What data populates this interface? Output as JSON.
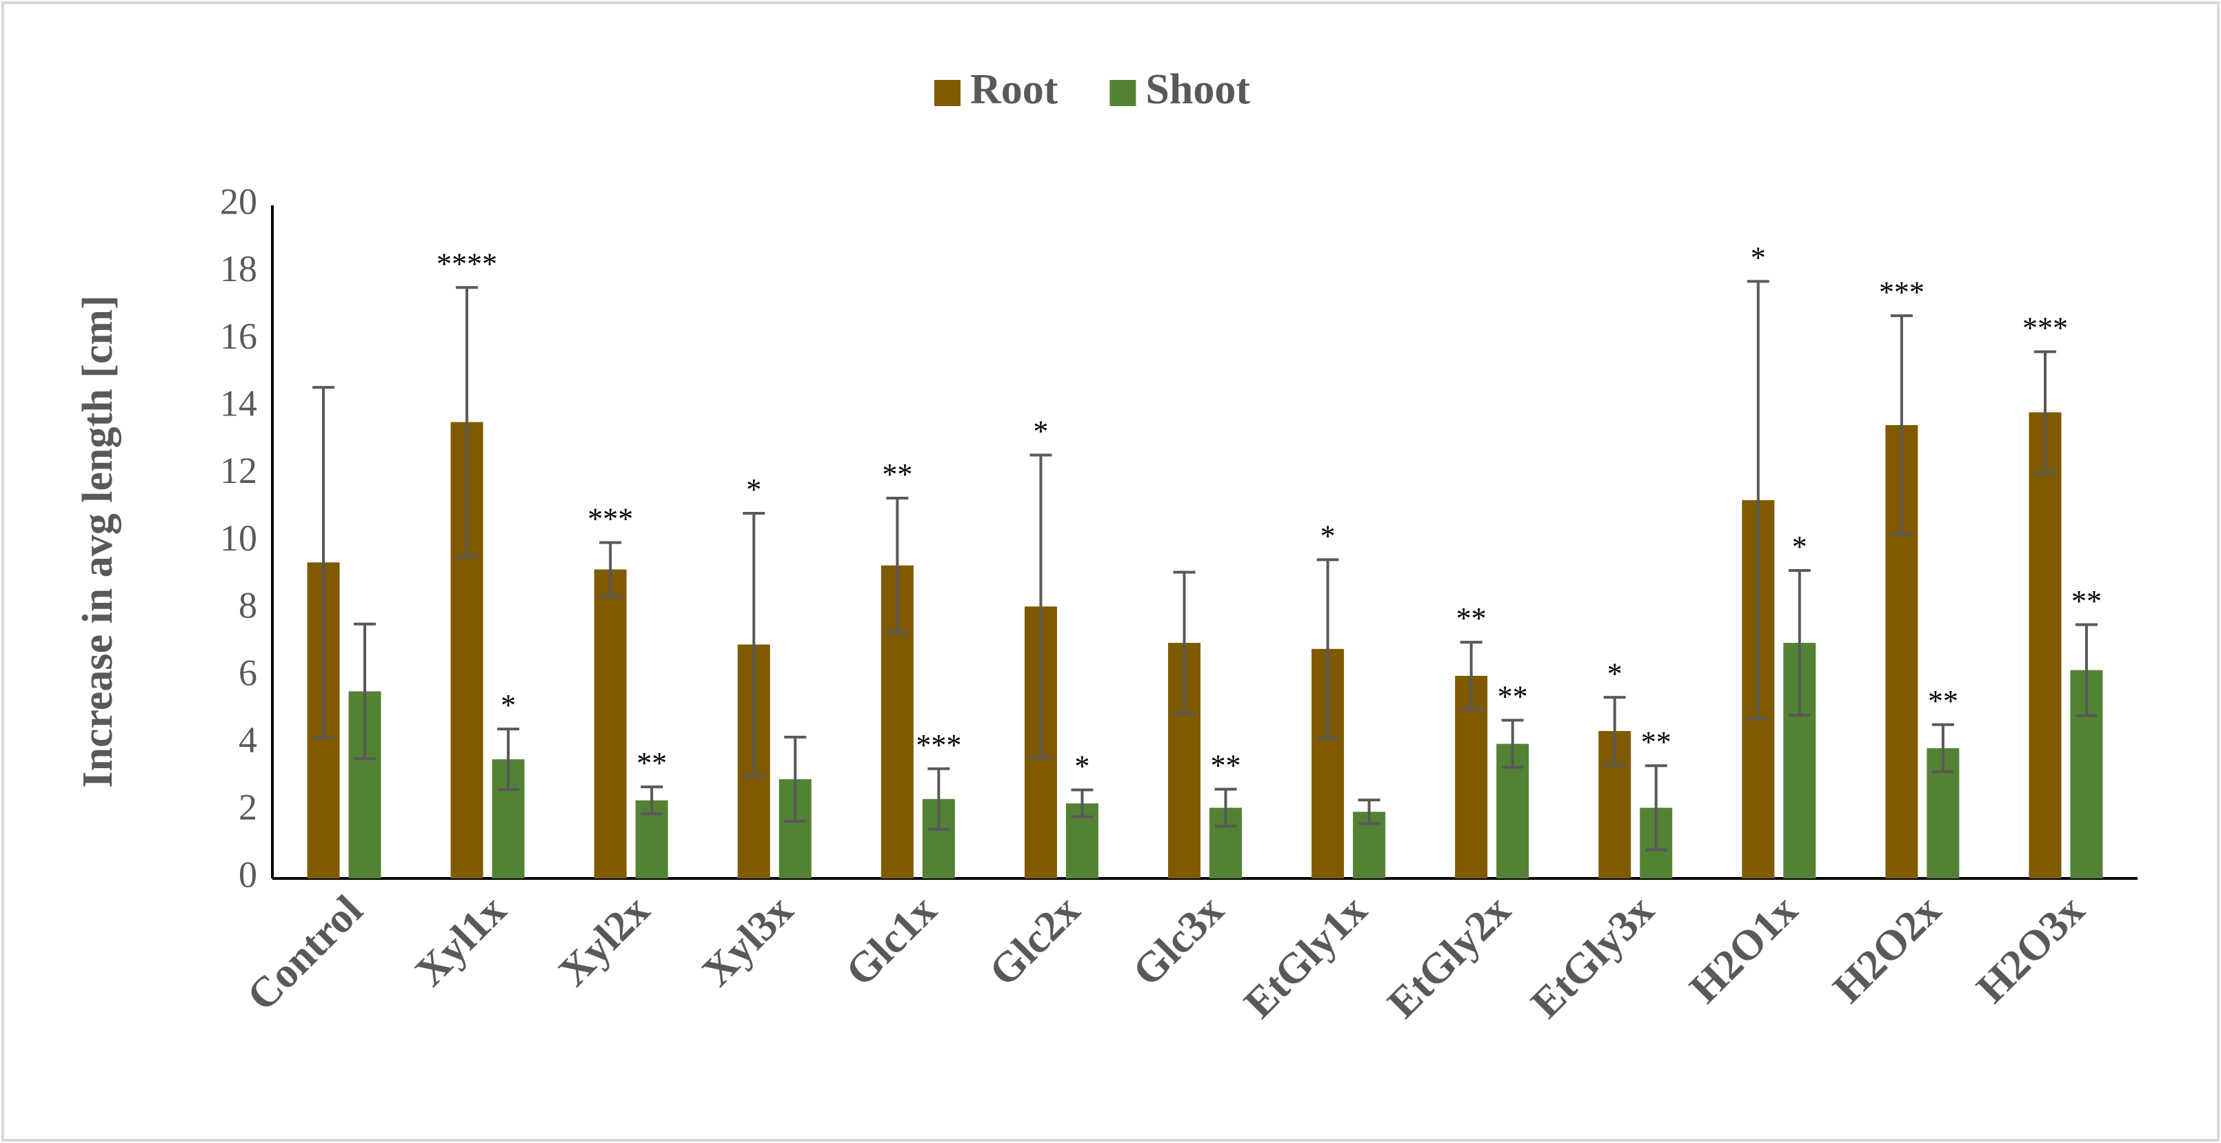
{
  "chart_data": {
    "type": "bar",
    "y_label": "Increase in avg length [cm]",
    "categories": [
      "Control",
      "Xyl1x",
      "Xyl2x",
      "Xyl3x",
      "Glc1x",
      "Glc2x",
      "Glc3x",
      "EtGly1x",
      "EtGly2x",
      "EtGly3x",
      "H2O1x",
      "H2O2x",
      "H2O3x"
    ],
    "series": [
      {
        "name": "Root",
        "color": "#7f5a00",
        "values": [
          9.39,
          13.56,
          9.18,
          6.95,
          9.3,
          8.08,
          7.0,
          6.82,
          6.02,
          4.38,
          11.24,
          13.47,
          13.85
        ],
        "errors": [
          5.2,
          4.0,
          0.8,
          3.9,
          2.0,
          4.5,
          2.1,
          2.65,
          1.0,
          1.0,
          6.5,
          3.25,
          1.8
        ],
        "annotations": [
          null,
          "****",
          "***",
          "*",
          "**",
          "*",
          null,
          "*",
          "**",
          "*",
          "*",
          "***",
          "***"
        ]
      },
      {
        "name": "Shoot",
        "color": "#548235",
        "values": [
          5.56,
          3.54,
          2.32,
          2.95,
          2.36,
          2.23,
          2.1,
          1.98,
          4.0,
          2.1,
          7.0,
          3.87,
          6.19
        ],
        "errors": [
          2.0,
          0.9,
          0.4,
          1.25,
          0.9,
          0.4,
          0.55,
          0.35,
          0.7,
          1.25,
          2.15,
          0.7,
          1.35
        ],
        "annotations": [
          null,
          "*",
          "**",
          null,
          "***",
          "*",
          "**",
          null,
          "**",
          "**",
          "*",
          "**",
          "**"
        ]
      }
    ],
    "ylim": [
      0,
      20
    ],
    "yticks": [
      0,
      2,
      4,
      6,
      8,
      10,
      12,
      14,
      16,
      18,
      20
    ],
    "grid": false,
    "legend": "top"
  }
}
